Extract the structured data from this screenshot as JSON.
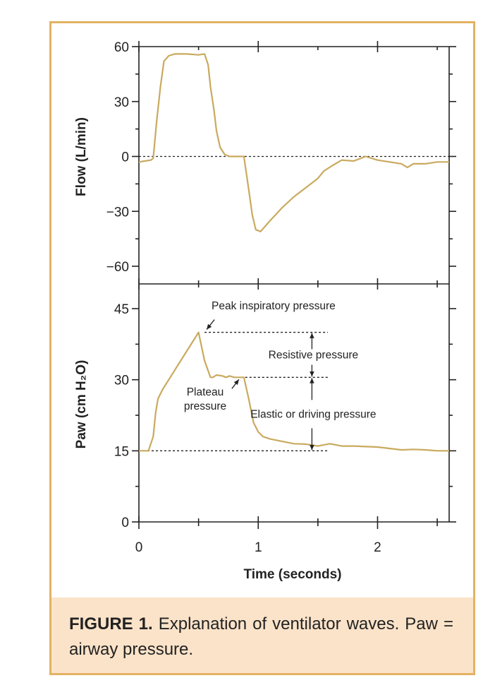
{
  "chart_data": [
    {
      "type": "line",
      "ylabel": "Flow (L/min)",
      "ylim": [
        -60,
        60
      ],
      "yticks": [
        "60",
        "30",
        "0",
        "−30",
        "−60"
      ],
      "ytick_values": [
        60,
        30,
        0,
        -30,
        -60
      ],
      "xlim": [
        0,
        2.6
      ],
      "series": [
        {
          "x": [
            0,
            0.05,
            0.1,
            0.12,
            0.15,
            0.18,
            0.21,
            0.25,
            0.3,
            0.4,
            0.5,
            0.55,
            0.58,
            0.6,
            0.63,
            0.65,
            0.68,
            0.72,
            0.76,
            0.8,
            0.85,
            0.88,
            0.92,
            0.95,
            0.98,
            1.02,
            1.06,
            1.1,
            1.2,
            1.3,
            1.4,
            1.5,
            1.55,
            1.62,
            1.7,
            1.8,
            1.9,
            2.0,
            2.1,
            2.2,
            2.25,
            2.3,
            2.4,
            2.5,
            2.6
          ],
          "y": [
            -3,
            -2.5,
            -2,
            -1,
            20,
            38,
            52,
            55,
            56,
            56,
            55.5,
            56,
            50,
            38,
            25,
            14,
            5,
            1,
            0,
            0,
            0,
            0,
            -18,
            -32,
            -40,
            -41,
            -38,
            -35,
            -28,
            -22,
            -17,
            -12,
            -8,
            -5,
            -2,
            -2.5,
            0,
            -2,
            -3,
            -4,
            -6,
            -4,
            -4,
            -3,
            -3
          ]
        }
      ],
      "reference_lines": [
        {
          "axis": "y",
          "value": 0,
          "style": "dotted"
        }
      ]
    },
    {
      "type": "line",
      "ylabel": "Paw (cm H₂O)",
      "ylim": [
        0,
        45
      ],
      "yticks": [
        "45",
        "30",
        "15",
        "0"
      ],
      "ytick_values": [
        45,
        30,
        15,
        0
      ],
      "xlabel": "Time (seconds)",
      "xlim": [
        0,
        2.6
      ],
      "xticks": [
        "0",
        "1",
        "2"
      ],
      "xtick_values": [
        0,
        1,
        2
      ],
      "series": [
        {
          "x": [
            0,
            0.08,
            0.12,
            0.14,
            0.16,
            0.2,
            0.25,
            0.3,
            0.35,
            0.4,
            0.45,
            0.5,
            0.55,
            0.6,
            0.62,
            0.65,
            0.7,
            0.73,
            0.76,
            0.8,
            0.88,
            0.92,
            0.96,
            1.0,
            1.04,
            1.1,
            1.2,
            1.3,
            1.4,
            1.5,
            1.6,
            1.7,
            1.8,
            2.0,
            2.1,
            2.2,
            2.3,
            2.4,
            2.5,
            2.6
          ],
          "y": [
            15,
            15,
            18,
            23,
            26,
            28,
            30,
            32,
            34,
            36,
            38,
            40,
            34,
            30.5,
            30.5,
            31,
            30.8,
            30.5,
            30.8,
            30.5,
            30.5,
            26,
            21,
            19,
            18,
            17.5,
            17,
            16.5,
            16.4,
            16,
            16.5,
            16,
            16,
            15.8,
            15.5,
            15.2,
            15.3,
            15.2,
            15,
            15
          ]
        }
      ],
      "reference_lines": [
        {
          "axis": "y",
          "value": 40,
          "style": "dotted"
        },
        {
          "axis": "y",
          "value": 30.5,
          "style": "dotted"
        },
        {
          "axis": "y",
          "value": 15,
          "style": "dotted"
        }
      ],
      "annotations": [
        {
          "text": "Peak inspiratory pressure",
          "points_to": [
            0.55,
            40
          ]
        },
        {
          "text_lines": [
            "Plateau",
            "pressure"
          ],
          "points_to": [
            0.85,
            30.5
          ]
        },
        {
          "text": "Resistive pressure",
          "between": [
            30.5,
            40
          ],
          "at_x": 1.45
        },
        {
          "text": "Elastic or driving pressure",
          "between": [
            15,
            30.5
          ],
          "at_x": 1.45
        }
      ]
    }
  ],
  "caption": {
    "label": "FIGURE 1.",
    "text": " Explanation of ventilator waves. Paw = airway pressure."
  },
  "colors": {
    "curve": "#c9aa5e",
    "frame": "#e3b262",
    "caption_bg": "#fbe3c9",
    "axis": "#222222"
  }
}
